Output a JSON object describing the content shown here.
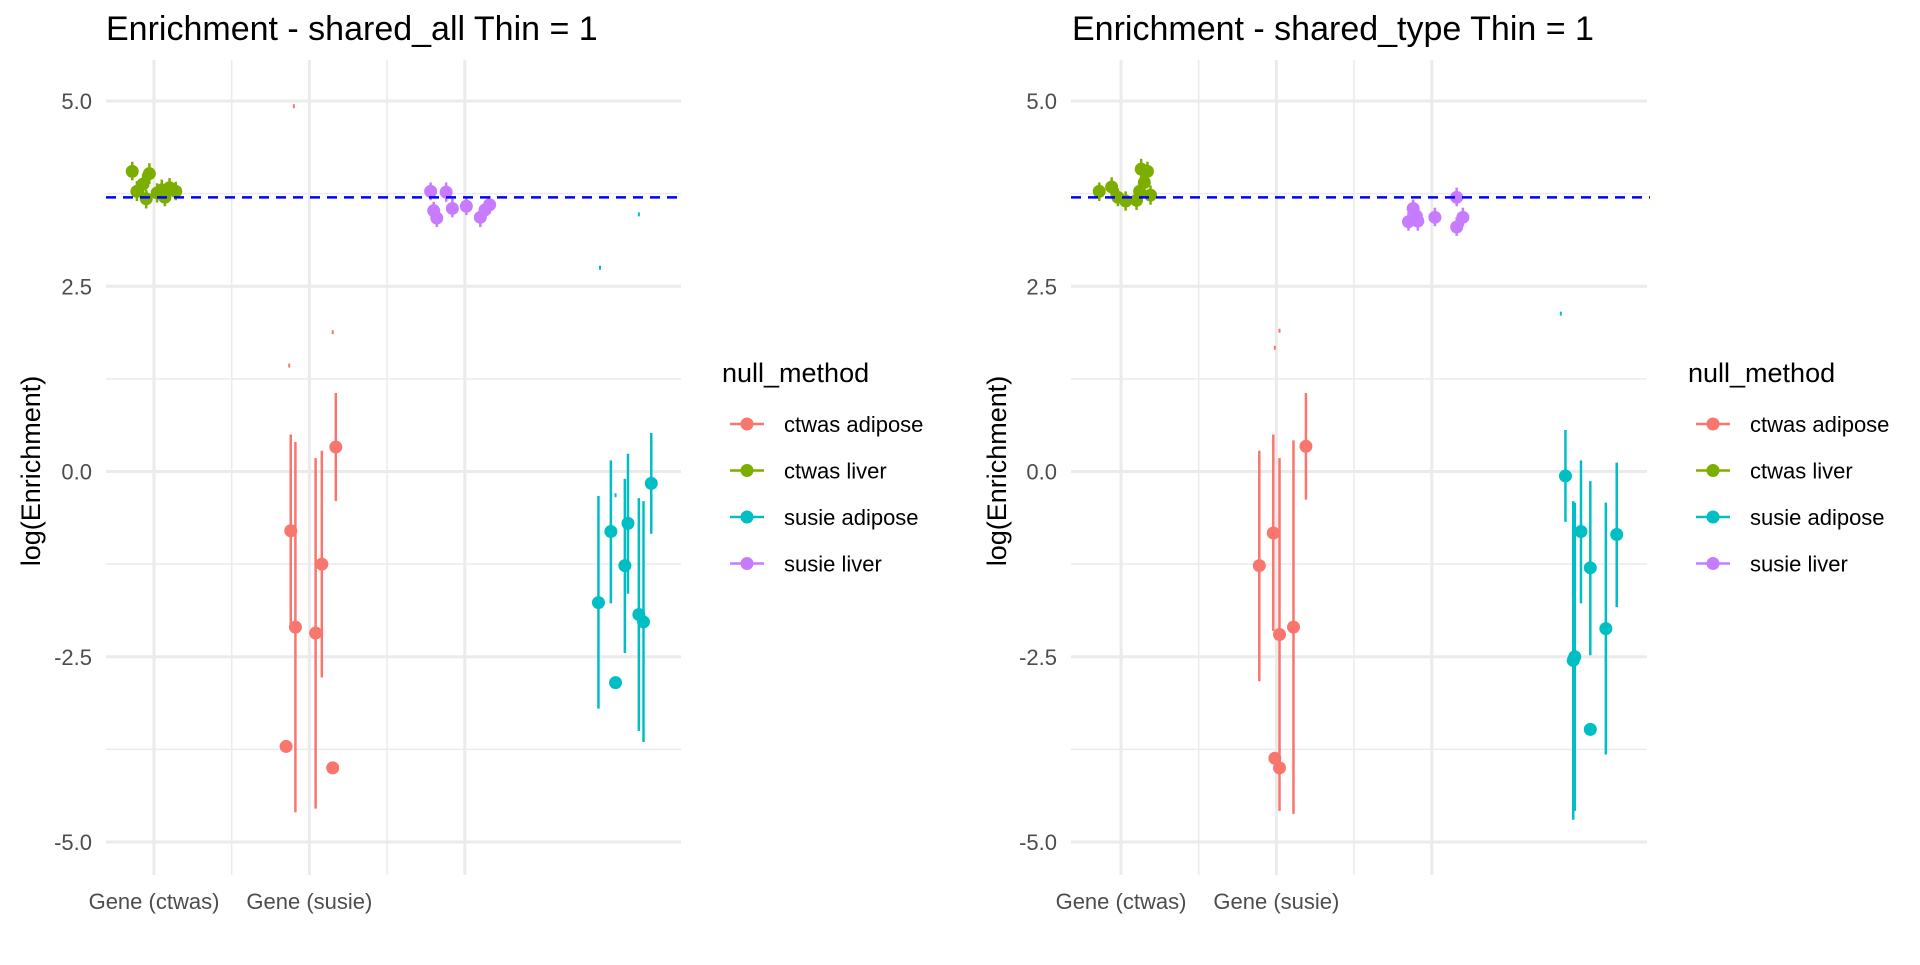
{
  "chart_data": [
    {
      "type": "scatter",
      "title": "Enrichment - shared_all Thin = 1",
      "xlabel": "",
      "ylabel": "log(Enrichment)",
      "ylim": [
        -5.5,
        5.5
      ],
      "yticks": [
        "5.0",
        "2.5",
        "0.0",
        "-2.5",
        "-5.0"
      ],
      "ytick_values": [
        5.0,
        2.5,
        0.0,
        -2.5,
        -5.0
      ],
      "xlim": [
        0.55,
        4.4
      ],
      "x_tick_labels": [
        {
          "label": "Gene (ctwas)",
          "x": 1
        },
        {
          "label": "Gene (susie)",
          "x": 2
        }
      ],
      "x_gridlines": [
        1,
        2,
        3
      ],
      "reference_line": {
        "y": 3.7,
        "color": "#0000ff",
        "style": "dashed"
      },
      "legend": {
        "title": "null_method",
        "position": "right"
      },
      "series": [
        {
          "name": "ctwas liver",
          "color": "#7cae00",
          "points": [
            {
              "x": 0.86,
              "y": 4.05,
              "lo": 3.93,
              "hi": 4.18
            },
            {
              "x": 0.89,
              "y": 3.78,
              "lo": 3.65,
              "hi": 3.92
            },
            {
              "x": 0.93,
              "y": 3.88,
              "lo": 3.75,
              "hi": 4.02
            },
            {
              "x": 0.95,
              "y": 3.68,
              "lo": 3.55,
              "hi": 3.8
            },
            {
              "x": 0.97,
              "y": 4.02,
              "lo": 3.88,
              "hi": 4.16
            },
            {
              "x": 1.02,
              "y": 3.76,
              "lo": 3.63,
              "hi": 3.89
            },
            {
              "x": 1.05,
              "y": 3.8,
              "lo": 3.67,
              "hi": 3.94
            },
            {
              "x": 1.07,
              "y": 3.7,
              "lo": 3.58,
              "hi": 3.83
            },
            {
              "x": 1.1,
              "y": 3.83,
              "lo": 3.7,
              "hi": 3.96
            },
            {
              "x": 1.14,
              "y": 3.78,
              "lo": 3.66,
              "hi": 3.91
            }
          ]
        },
        {
          "name": "ctwas adipose",
          "color": "#f8766d",
          "points": [
            {
              "x": 1.85,
              "y": -3.71,
              "lo": -3.71,
              "hi": -3.71
            },
            {
              "x": 1.88,
              "y": -0.8,
              "lo": -2.1,
              "hi": 0.5
            },
            {
              "x": 1.91,
              "y": -2.1,
              "lo": -4.6,
              "hi": 0.4
            },
            {
              "x": 2.04,
              "y": -2.18,
              "lo": -4.55,
              "hi": 0.18
            },
            {
              "x": 2.08,
              "y": -1.25,
              "lo": -2.78,
              "hi": 0.28
            },
            {
              "x": 2.15,
              "y": -4.0,
              "lo": -4.0,
              "hi": -4.0
            },
            {
              "x": 2.17,
              "y": 0.33,
              "lo": -0.4,
              "hi": 1.06
            }
          ]
        },
        {
          "name": "susie liver",
          "color": "#c77cff",
          "points": [
            {
              "x": 2.78,
              "y": 3.78,
              "lo": 3.66,
              "hi": 3.9
            },
            {
              "x": 2.8,
              "y": 3.52,
              "lo": 3.4,
              "hi": 3.64
            },
            {
              "x": 2.82,
              "y": 3.42,
              "lo": 3.3,
              "hi": 3.55
            },
            {
              "x": 2.88,
              "y": 3.77,
              "lo": 3.64,
              "hi": 3.9
            },
            {
              "x": 2.92,
              "y": 3.55,
              "lo": 3.43,
              "hi": 3.68
            },
            {
              "x": 3.01,
              "y": 3.58,
              "lo": 3.46,
              "hi": 3.71
            },
            {
              "x": 3.1,
              "y": 3.43,
              "lo": 3.3,
              "hi": 3.56
            },
            {
              "x": 3.13,
              "y": 3.53,
              "lo": 3.4,
              "hi": 3.65
            },
            {
              "x": 3.16,
              "y": 3.6,
              "lo": 3.48,
              "hi": 3.72
            }
          ]
        },
        {
          "name": "susie adipose",
          "color": "#00bfc4",
          "points": [
            {
              "x": 3.86,
              "y": -1.77,
              "lo": -3.2,
              "hi": -0.33
            },
            {
              "x": 3.94,
              "y": -0.81,
              "lo": -1.78,
              "hi": 0.15
            },
            {
              "x": 3.97,
              "y": -2.85,
              "lo": -2.85,
              "hi": -2.85
            },
            {
              "x": 4.03,
              "y": -1.27,
              "lo": -2.45,
              "hi": -0.1
            },
            {
              "x": 4.05,
              "y": -0.7,
              "lo": -1.65,
              "hi": 0.24
            },
            {
              "x": 4.12,
              "y": -1.93,
              "lo": -3.5,
              "hi": -0.36
            },
            {
              "x": 4.15,
              "y": -2.03,
              "lo": -3.65,
              "hi": -0.4
            },
            {
              "x": 4.2,
              "y": -0.16,
              "lo": -0.84,
              "hi": 0.52
            }
          ]
        }
      ],
      "tiny_marks": [
        {
          "x": 1.9,
          "y": 4.93,
          "color": "#f8766d"
        },
        {
          "x": 1.87,
          "y": 1.43,
          "color": "#f8766d"
        },
        {
          "x": 2.15,
          "y": 1.88,
          "color": "#f8766d"
        },
        {
          "x": 3.87,
          "y": 2.75,
          "color": "#00bfc4"
        },
        {
          "x": 4.12,
          "y": 3.47,
          "color": "#00bfc4"
        },
        {
          "x": 3.97,
          "y": -0.32,
          "color": "#00bfc4"
        }
      ]
    },
    {
      "type": "scatter",
      "title": "Enrichment - shared_type Thin = 1",
      "xlabel": "",
      "ylabel": "log(Enrichment)",
      "ylim": [
        -5.5,
        5.5
      ],
      "yticks": [
        "5.0",
        "2.5",
        "0.0",
        "-2.5",
        "-5.0"
      ],
      "ytick_values": [
        5.0,
        2.5,
        0.0,
        -2.5,
        -5.0
      ],
      "xlim": [
        0.55,
        4.4
      ],
      "x_tick_labels": [
        {
          "label": "Gene (ctwas)",
          "x": 1
        },
        {
          "label": "Gene (susie)",
          "x": 2
        }
      ],
      "x_gridlines": [
        1,
        2,
        3
      ],
      "reference_line": {
        "y": 3.7,
        "color": "#0000ff",
        "style": "dashed"
      },
      "legend": {
        "title": "null_method",
        "position": "right"
      },
      "series": [
        {
          "name": "ctwas liver",
          "color": "#7cae00",
          "points": [
            {
              "x": 0.86,
              "y": 3.78,
              "lo": 3.65,
              "hi": 3.9
            },
            {
              "x": 0.94,
              "y": 3.84,
              "lo": 3.72,
              "hi": 3.97
            },
            {
              "x": 0.98,
              "y": 3.7,
              "lo": 3.58,
              "hi": 3.82
            },
            {
              "x": 1.03,
              "y": 3.65,
              "lo": 3.52,
              "hi": 3.78
            },
            {
              "x": 1.1,
              "y": 3.66,
              "lo": 3.53,
              "hi": 3.8
            },
            {
              "x": 1.12,
              "y": 3.78,
              "lo": 3.65,
              "hi": 3.9
            },
            {
              "x": 1.13,
              "y": 4.08,
              "lo": 3.95,
              "hi": 4.22
            },
            {
              "x": 1.15,
              "y": 3.9,
              "lo": 3.78,
              "hi": 4.03
            },
            {
              "x": 1.17,
              "y": 4.05,
              "lo": 3.92,
              "hi": 4.18
            },
            {
              "x": 1.19,
              "y": 3.73,
              "lo": 3.6,
              "hi": 3.86
            }
          ]
        },
        {
          "name": "ctwas adipose",
          "color": "#f8766d",
          "points": [
            {
              "x": 1.89,
              "y": -1.27,
              "lo": -2.83,
              "hi": 0.28
            },
            {
              "x": 1.98,
              "y": -0.83,
              "lo": -2.15,
              "hi": 0.5
            },
            {
              "x": 1.99,
              "y": -3.87,
              "lo": -3.87,
              "hi": -3.87
            },
            {
              "x": 2.02,
              "y": -2.2,
              "lo": -4.58,
              "hi": 0.18
            },
            {
              "x": 2.02,
              "y": -4.0,
              "lo": -4.0,
              "hi": -4.0
            },
            {
              "x": 2.11,
              "y": -2.1,
              "lo": -4.62,
              "hi": 0.42
            },
            {
              "x": 2.19,
              "y": 0.34,
              "lo": -0.38,
              "hi": 1.06
            }
          ]
        },
        {
          "name": "susie liver",
          "color": "#c77cff",
          "points": [
            {
              "x": 2.85,
              "y": 3.37,
              "lo": 3.25,
              "hi": 3.5
            },
            {
              "x": 2.88,
              "y": 3.55,
              "lo": 3.43,
              "hi": 3.67
            },
            {
              "x": 2.9,
              "y": 3.45,
              "lo": 3.32,
              "hi": 3.58
            },
            {
              "x": 2.91,
              "y": 3.38,
              "lo": 3.25,
              "hi": 3.5
            },
            {
              "x": 3.02,
              "y": 3.43,
              "lo": 3.31,
              "hi": 3.56
            },
            {
              "x": 3.16,
              "y": 3.7,
              "lo": 3.58,
              "hi": 3.83
            },
            {
              "x": 3.16,
              "y": 3.3,
              "lo": 3.18,
              "hi": 3.43
            },
            {
              "x": 3.2,
              "y": 3.43,
              "lo": 3.31,
              "hi": 3.56
            }
          ]
        },
        {
          "name": "susie adipose",
          "color": "#00bfc4",
          "points": [
            {
              "x": 3.86,
              "y": -0.06,
              "lo": -0.68,
              "hi": 0.56
            },
            {
              "x": 3.91,
              "y": -2.55,
              "lo": -4.7,
              "hi": -0.4
            },
            {
              "x": 3.92,
              "y": -2.5,
              "lo": -4.58,
              "hi": -0.42
            },
            {
              "x": 3.96,
              "y": -0.81,
              "lo": -1.78,
              "hi": 0.15
            },
            {
              "x": 4.02,
              "y": -1.3,
              "lo": -2.48,
              "hi": -0.13
            },
            {
              "x": 4.02,
              "y": -3.48,
              "lo": -3.48,
              "hi": -3.48
            },
            {
              "x": 4.12,
              "y": -2.12,
              "lo": -3.82,
              "hi": -0.42
            },
            {
              "x": 4.19,
              "y": -0.85,
              "lo": -1.83,
              "hi": 0.12
            }
          ]
        }
      ],
      "tiny_marks": [
        {
          "x": 1.99,
          "y": 1.67,
          "color": "#f8766d"
        },
        {
          "x": 2.02,
          "y": 1.9,
          "color": "#f8766d"
        },
        {
          "x": 3.83,
          "y": 2.13,
          "color": "#00bfc4"
        }
      ]
    }
  ],
  "legend_order": [
    "ctwas adipose",
    "ctwas liver",
    "susie adipose",
    "susie liver"
  ]
}
